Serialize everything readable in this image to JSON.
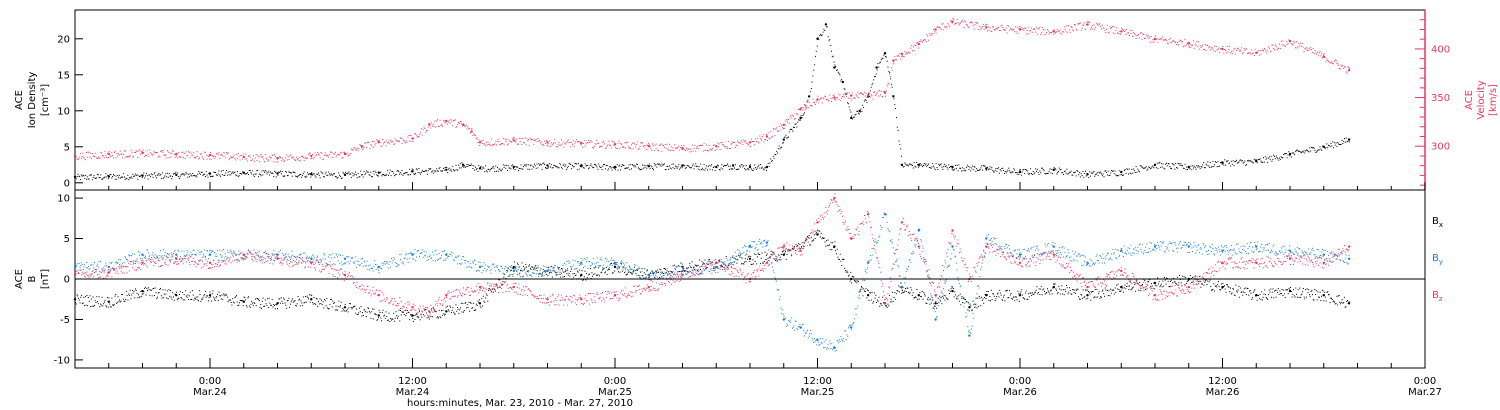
{
  "x_axis": {
    "ticks": [
      {
        "hours": 0,
        "time": "0:00",
        "date": "Mar.24"
      },
      {
        "hours": 12,
        "time": "12:00",
        "date": "Mar.24"
      },
      {
        "hours": 24,
        "time": "0:00",
        "date": "Mar.25"
      },
      {
        "hours": 36,
        "time": "12:00",
        "date": "Mar.25"
      },
      {
        "hours": 48,
        "time": "0:00",
        "date": "Mar.26"
      },
      {
        "hours": 60,
        "time": "12:00",
        "date": "Mar.26"
      },
      {
        "hours": 72,
        "time": "0:00",
        "date": "Mar.27"
      }
    ],
    "label": "hours:minutes, Mar. 23, 2010 - Mar. 27, 2010",
    "range_hours": [
      -8,
      72
    ]
  },
  "panels": {
    "top": {
      "left_label": [
        "ACE",
        "Ion Density",
        "[cm⁻³]"
      ],
      "right_label": [
        "ACE",
        "Velocity",
        "[km/s]"
      ],
      "left_ticks": [
        "0",
        "5",
        "10",
        "15",
        "20"
      ],
      "right_ticks": [
        "300",
        "350",
        "400"
      ],
      "right_color": "#e8365e"
    },
    "bottom": {
      "left_label": [
        "ACE",
        "B",
        "[nT]"
      ],
      "left_ticks": [
        "-10",
        "-5",
        "0",
        "5",
        "10"
      ],
      "legend": [
        {
          "name": "B",
          "sub": "x",
          "color": "#000000"
        },
        {
          "name": "B",
          "sub": "y",
          "color": "#1e7fd8"
        },
        {
          "name": "B",
          "sub": "z",
          "color": "#e8365e"
        }
      ]
    }
  },
  "chart_data": [
    {
      "type": "scatter",
      "x_units": "hours since 2010-03-24 00:00",
      "xlim": [
        -8,
        72
      ],
      "series": [
        {
          "color": "#000000",
          "axis": "left",
          "ylim": [
            -1,
            24
          ],
          "x": [
            -8,
            -6,
            -4,
            -2,
            0,
            2,
            4,
            6,
            8,
            10,
            12,
            14,
            15,
            16,
            18,
            20,
            22,
            24,
            26,
            28,
            30,
            31,
            32,
            33,
            34,
            35,
            35.5,
            36,
            36.5,
            37,
            37.5,
            38,
            38.5,
            39,
            39.5,
            40,
            40.5,
            41,
            42,
            44,
            46,
            48,
            50,
            52,
            54,
            56,
            58,
            60,
            62,
            64,
            66,
            67.5
          ],
          "y": [
            0.8,
            0.9,
            1.0,
            1.1,
            1.3,
            1.4,
            1.3,
            1.2,
            1.1,
            1.4,
            1.6,
            1.8,
            2.5,
            2.0,
            2.2,
            2.4,
            2.3,
            2.2,
            2.3,
            2.4,
            2.2,
            2.4,
            2.2,
            2.2,
            6.0,
            9.0,
            12.0,
            20.0,
            22.0,
            16.0,
            14.0,
            9.0,
            10.0,
            12.0,
            16.0,
            18.0,
            12.0,
            2.5,
            2.5,
            2.2,
            2.0,
            1.5,
            1.8,
            1.2,
            1.5,
            2.5,
            2.2,
            2.8,
            3.0,
            4.0,
            5.0,
            6.0
          ]
        },
        {
          "color": "#e8365e",
          "axis": "right",
          "ylim": [
            255,
            440
          ],
          "x": [
            -8,
            -6,
            -4,
            -2,
            0,
            2,
            4,
            6,
            8,
            9,
            10,
            12,
            13,
            14,
            15,
            15.5,
            16,
            18,
            20,
            22,
            24,
            26,
            28,
            30,
            32,
            33,
            34,
            35,
            36,
            37,
            38,
            39,
            40,
            40.5,
            41,
            42,
            43,
            44,
            46,
            48,
            50,
            52,
            54,
            56,
            58,
            60,
            62,
            64,
            66,
            67.5
          ],
          "y": [
            290,
            292,
            293,
            292,
            291,
            289,
            288,
            290,
            292,
            300,
            304,
            308,
            322,
            326,
            322,
            315,
            304,
            306,
            304,
            303,
            302,
            300,
            298,
            300,
            304,
            310,
            322,
            338,
            348,
            350,
            352,
            352,
            355,
            388,
            395,
            405,
            420,
            428,
            422,
            420,
            418,
            425,
            418,
            410,
            406,
            400,
            396,
            408,
            392,
            378
          ]
        }
      ]
    },
    {
      "type": "scatter",
      "x_units": "hours since 2010-03-24 00:00",
      "xlim": [
        -8,
        72
      ],
      "ylim": [
        -11,
        11
      ],
      "series": [
        {
          "name": "Bx",
          "color": "#000000",
          "x": [
            -8,
            -6,
            -4,
            -2,
            0,
            2,
            4,
            6,
            8,
            10,
            12,
            14,
            16,
            18,
            20,
            22,
            24,
            26,
            28,
            30,
            32,
            34,
            36,
            37,
            38,
            39,
            40,
            41,
            42,
            43,
            44,
            45,
            46,
            48,
            50,
            52,
            54,
            56,
            58,
            60,
            62,
            64,
            66,
            67.5
          ],
          "y": [
            -2.5,
            -2.8,
            -1.5,
            -2.0,
            -2.0,
            -2.8,
            -3.0,
            -2.5,
            -3.5,
            -4.5,
            -4.5,
            -4.0,
            -3.0,
            1.5,
            1.0,
            0.5,
            1.5,
            0.5,
            1.5,
            2.0,
            2.5,
            3.0,
            5.5,
            4.0,
            0.0,
            -2.0,
            -3.0,
            -1.0,
            -2.0,
            -3.0,
            -1.5,
            -3.5,
            -2.0,
            -2.0,
            -1.0,
            -2.0,
            -1.0,
            -0.5,
            0.0,
            -1.0,
            -2.0,
            -1.5,
            -2.0,
            -3.0
          ]
        },
        {
          "name": "By",
          "color": "#1e7fd8",
          "x": [
            -8,
            -6,
            -4,
            -2,
            0,
            2,
            4,
            6,
            8,
            10,
            12,
            14,
            16,
            18,
            20,
            22,
            24,
            26,
            28,
            30,
            32,
            33,
            34,
            35,
            36,
            37,
            38,
            39,
            40,
            41,
            42,
            43,
            44,
            45,
            46,
            48,
            50,
            52,
            54,
            56,
            58,
            60,
            62,
            64,
            66,
            67.5
          ],
          "y": [
            1.5,
            1.5,
            3.0,
            3.0,
            3.0,
            3.0,
            3.0,
            2.5,
            2.5,
            1.5,
            3.0,
            3.0,
            1.5,
            1.0,
            1.0,
            2.0,
            2.0,
            0.5,
            1.0,
            1.5,
            4.0,
            4.5,
            -5.0,
            -6.0,
            -7.5,
            -8.5,
            -6.0,
            2.0,
            8.0,
            -1.0,
            6.0,
            -5.0,
            4.0,
            -7.0,
            5.0,
            3.0,
            4.0,
            2.0,
            3.5,
            4.0,
            4.0,
            3.5,
            4.0,
            3.5,
            3.0,
            2.5
          ]
        },
        {
          "name": "Bz",
          "color": "#e8365e",
          "x": [
            -8,
            -6,
            -4,
            -2,
            0,
            2,
            4,
            6,
            8,
            10,
            12,
            13,
            14,
            16,
            18,
            20,
            22,
            24,
            26,
            28,
            30,
            32,
            33,
            34,
            35,
            36,
            37,
            38,
            39,
            40,
            41,
            42,
            43,
            44,
            45,
            46,
            48,
            50,
            52,
            54,
            56,
            58,
            60,
            62,
            64,
            66,
            67.5
          ],
          "y": [
            0.5,
            0.8,
            2.0,
            2.5,
            2.0,
            3.0,
            2.5,
            2.0,
            0.5,
            -2.0,
            -3.5,
            -4.0,
            -2.0,
            -1.0,
            -1.0,
            -2.5,
            -2.5,
            -2.0,
            -1.0,
            0.5,
            2.0,
            0.0,
            2.0,
            4.0,
            3.5,
            7.0,
            10.0,
            5.0,
            8.0,
            -3.0,
            7.0,
            4.0,
            -2.0,
            6.0,
            0.0,
            4.0,
            2.0,
            3.0,
            -1.0,
            1.0,
            -2.0,
            -1.0,
            2.0,
            2.0,
            2.5,
            2.0,
            4.0
          ]
        }
      ]
    }
  ]
}
